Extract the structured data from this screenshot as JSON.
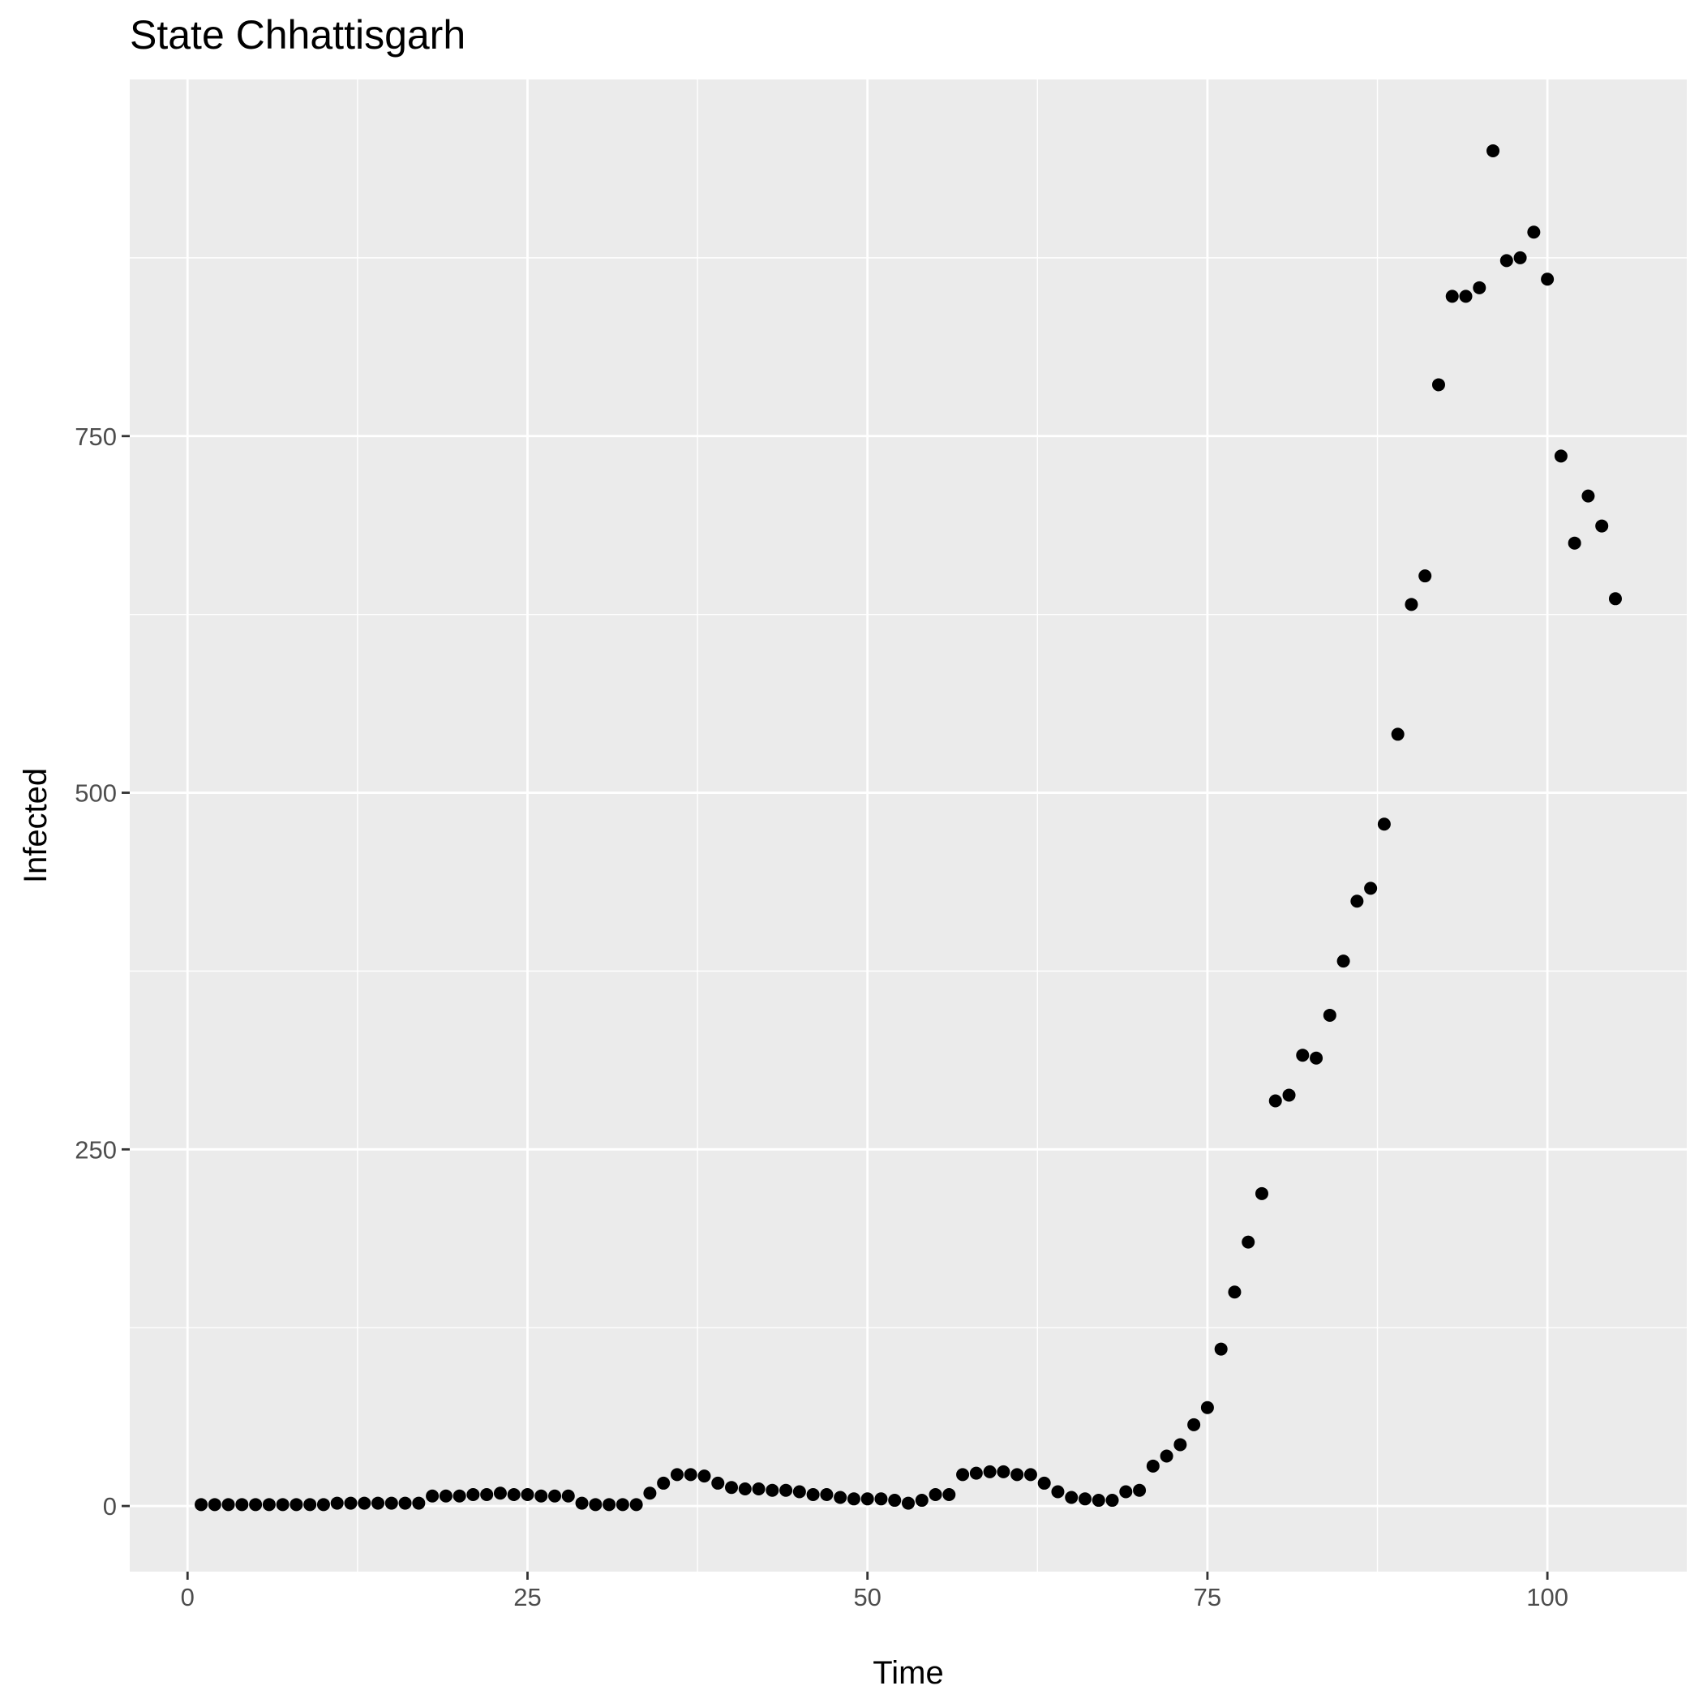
{
  "chart_data": {
    "type": "scatter",
    "title": "State Chhattisgarh",
    "xlabel": "Time",
    "ylabel": "Infected",
    "xlim": [
      -4.25,
      110.25
    ],
    "ylim": [
      -46,
      1000
    ],
    "x_ticks": [
      0,
      25,
      50,
      75,
      100
    ],
    "y_ticks": [
      0,
      250,
      500,
      750
    ],
    "x_minor": [
      12.5,
      37.5,
      62.5,
      87.5
    ],
    "y_minor": [
      125,
      375,
      625,
      875
    ],
    "grid": true,
    "legend": "none",
    "colors": {
      "panel": "#ebebeb",
      "grid": "#ffffff",
      "point": "#000000",
      "tick": "#333333"
    },
    "x": [
      1,
      2,
      3,
      4,
      5,
      6,
      7,
      8,
      9,
      10,
      11,
      12,
      13,
      14,
      15,
      16,
      17,
      18,
      19,
      20,
      21,
      22,
      23,
      24,
      25,
      26,
      27,
      28,
      29,
      30,
      31,
      32,
      33,
      34,
      35,
      36,
      37,
      38,
      39,
      40,
      41,
      42,
      43,
      44,
      45,
      46,
      47,
      48,
      49,
      50,
      51,
      52,
      53,
      54,
      55,
      56,
      57,
      58,
      59,
      60,
      61,
      62,
      63,
      64,
      65,
      66,
      67,
      68,
      69,
      70,
      71,
      72,
      73,
      74,
      75,
      76,
      77,
      78,
      79,
      80,
      81,
      82,
      83,
      84,
      85,
      86,
      87,
      88,
      89,
      90,
      91,
      92,
      93,
      94,
      95,
      96,
      97,
      98,
      99,
      100,
      101,
      102,
      103,
      104,
      105
    ],
    "y": [
      1,
      1,
      1,
      1,
      1,
      1,
      1,
      1,
      1,
      1,
      2,
      2,
      2,
      2,
      2,
      2,
      2,
      7,
      7,
      7,
      8,
      8,
      9,
      8,
      8,
      7,
      7,
      7,
      2,
      1,
      1,
      1,
      1,
      9,
      16,
      22,
      22,
      21,
      16,
      13,
      12,
      12,
      11,
      11,
      10,
      8,
      8,
      6,
      5,
      5,
      5,
      4,
      2,
      4,
      8,
      8,
      22,
      23,
      24,
      24,
      22,
      22,
      16,
      10,
      6,
      5,
      4,
      4,
      10,
      11,
      28,
      35,
      43,
      57,
      69,
      110,
      150,
      185,
      219,
      284,
      288,
      316,
      314,
      344,
      382,
      424,
      433,
      478,
      541,
      632,
      652,
      786,
      848,
      848,
      854,
      950,
      873,
      875,
      893,
      860,
      736,
      675,
      708,
      687,
      636
    ]
  }
}
